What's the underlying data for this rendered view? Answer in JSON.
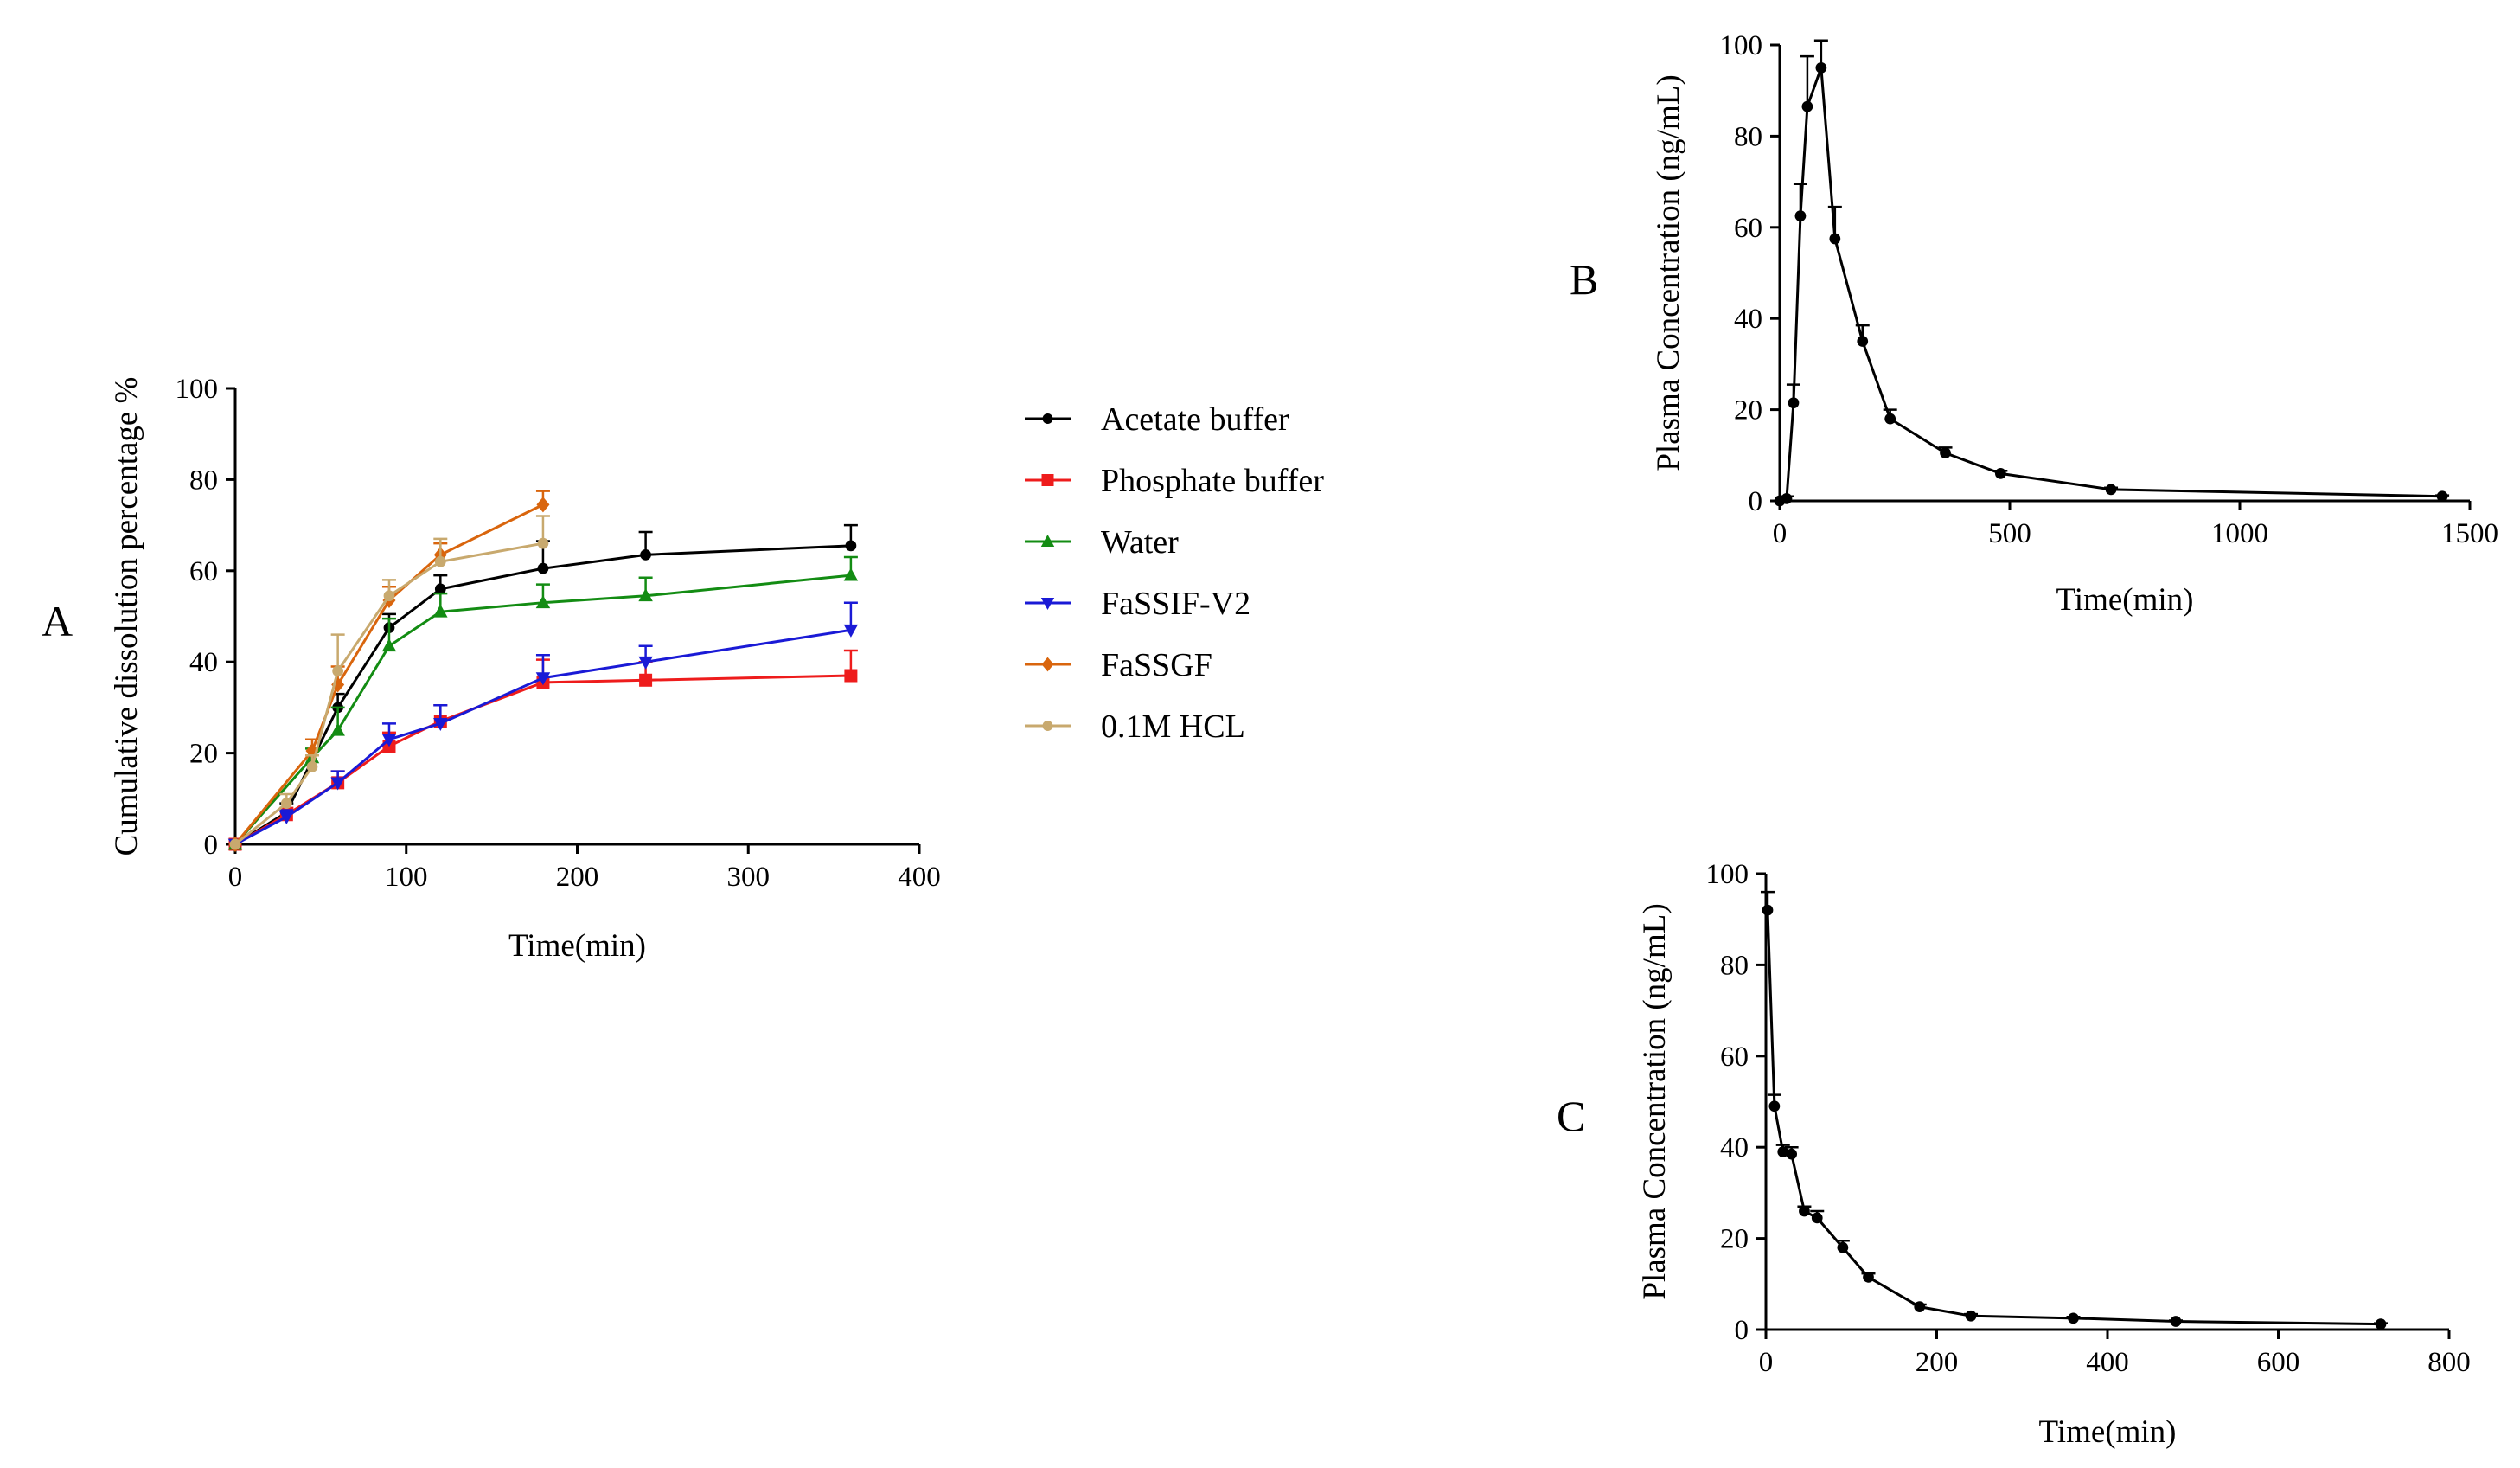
{
  "chart_data": [
    {
      "panel": "A",
      "type": "line",
      "xlabel": "Time(min)",
      "ylabel": "Cumulative dissolution percentage %",
      "xlim": [
        0,
        400
      ],
      "ylim": [
        0,
        100
      ],
      "xticks": [
        0,
        100,
        200,
        300,
        400
      ],
      "yticks": [
        0,
        20,
        40,
        60,
        80,
        100
      ],
      "legend_position": "right",
      "series": [
        {
          "name": "Acetate buffer",
          "color": "#000000",
          "marker": "circle",
          "x": [
            0,
            30,
            60,
            90,
            120,
            180,
            240,
            360
          ],
          "y": [
            0,
            7,
            30,
            47.5,
            56,
            60.5,
            63.5,
            65.5
          ],
          "err": [
            0,
            2,
            3,
            3,
            3,
            6,
            5,
            4.5
          ]
        },
        {
          "name": "Phosphate buffer",
          "color": "#ee1c1c",
          "marker": "square",
          "x": [
            0,
            30,
            60,
            90,
            120,
            180,
            240,
            360
          ],
          "y": [
            0,
            6.5,
            13.5,
            21.5,
            27,
            35.5,
            36,
            37
          ],
          "err": [
            0,
            1.5,
            2.5,
            3,
            3.5,
            5,
            4,
            5.5
          ]
        },
        {
          "name": "Water",
          "color": "#138c13",
          "marker": "triangle-up",
          "x": [
            0,
            45,
            60,
            90,
            120,
            180,
            240,
            360
          ],
          "y": [
            0,
            19,
            25,
            43.5,
            51,
            53,
            54.5,
            59
          ],
          "err": [
            0,
            2,
            5,
            6,
            4,
            4,
            4,
            4
          ]
        },
        {
          "name": "FaSSIF-V2",
          "color": "#1a1ad6",
          "marker": "triangle-down",
          "x": [
            0,
            30,
            60,
            90,
            120,
            180,
            240,
            360
          ],
          "y": [
            0,
            6,
            13.5,
            23,
            26.5,
            36.5,
            40,
            47
          ],
          "err": [
            0,
            1.5,
            2.5,
            3.5,
            4,
            5,
            3.5,
            6
          ]
        },
        {
          "name": "FaSSGF",
          "color": "#d9650d",
          "marker": "diamond",
          "x": [
            0,
            45,
            60,
            90,
            120,
            180
          ],
          "y": [
            0,
            20.5,
            35,
            53.5,
            63.5,
            74.5
          ],
          "err": [
            0,
            2.5,
            4,
            3,
            2.5,
            3
          ]
        },
        {
          "name": "0.1M HCL",
          "color": "#c8a96e",
          "marker": "circle",
          "x": [
            0,
            30,
            45,
            60,
            90,
            120,
            180
          ],
          "y": [
            0,
            9,
            17,
            38,
            54.5,
            62,
            66
          ],
          "err": [
            0,
            2,
            2.5,
            8,
            3.5,
            5,
            6
          ]
        }
      ]
    },
    {
      "panel": "B",
      "type": "line",
      "xlabel": "Time(min)",
      "ylabel": "Plasma Concentration (ng/mL)",
      "xlim": [
        0,
        1500
      ],
      "ylim": [
        0,
        100
      ],
      "xticks": [
        0,
        500,
        1000,
        1500
      ],
      "yticks": [
        0,
        20,
        40,
        60,
        80,
        100
      ],
      "series": [
        {
          "name": "Plasma Concentration",
          "color": "#000000",
          "marker": "circle",
          "x": [
            0,
            15,
            30,
            45,
            60,
            90,
            120,
            180,
            240,
            360,
            480,
            720,
            1440
          ],
          "y": [
            0,
            0.5,
            21.5,
            62.5,
            86.5,
            95,
            57.5,
            35,
            18,
            10.5,
            6,
            2.5,
            1
          ],
          "err": [
            0,
            0.5,
            4,
            7,
            11,
            6,
            7,
            3.5,
            2,
            1.2,
            0.6,
            0.4,
            0.2
          ]
        }
      ]
    },
    {
      "panel": "C",
      "type": "line",
      "xlabel": "Time(min)",
      "ylabel": "Plasma Concentration (ng/mL)",
      "xlim": [
        0,
        800
      ],
      "ylim": [
        0,
        100
      ],
      "xticks": [
        0,
        200,
        400,
        600,
        800
      ],
      "yticks": [
        0,
        20,
        40,
        60,
        80,
        100
      ],
      "series": [
        {
          "name": "Plasma Concentration",
          "color": "#000000",
          "marker": "circle",
          "x": [
            2,
            10,
            20,
            30,
            45,
            60,
            90,
            120,
            180,
            240,
            360,
            480,
            720
          ],
          "y": [
            92,
            49,
            39,
            38.5,
            26,
            24.5,
            18,
            11.5,
            5,
            3,
            2.5,
            1.8,
            1.2
          ],
          "err": [
            4,
            2.5,
            1.5,
            1.5,
            1,
            1.5,
            1.5,
            0.8,
            0.5,
            0.4,
            0.3,
            0.2,
            0.2
          ]
        }
      ]
    }
  ]
}
